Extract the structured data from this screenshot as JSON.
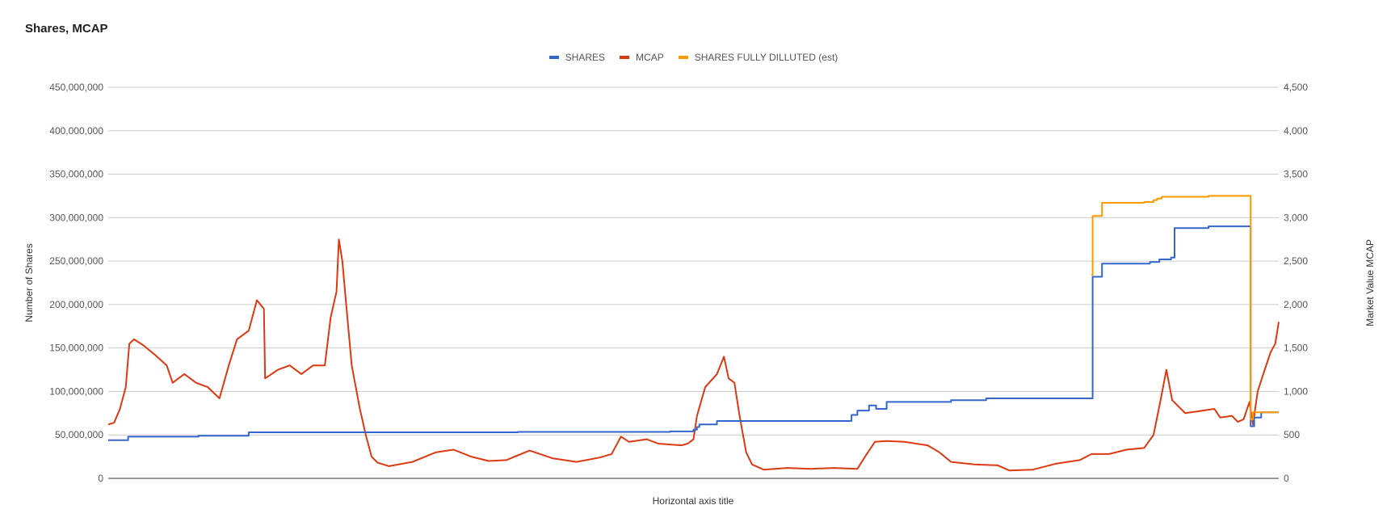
{
  "chart_data": {
    "type": "line",
    "title": "Shares, MCAP",
    "xlabel": "Horizontal axis title",
    "ylabel": "Number of Shares",
    "y2label": "Market Value MCAP",
    "ylim": [
      0,
      450000000
    ],
    "y2lim": [
      0,
      4500
    ],
    "y_ticks": [
      "0",
      "50,000,000",
      "100,000,000",
      "150,000,000",
      "200,000,000",
      "250,000,000",
      "300,000,000",
      "350,000,000",
      "400,000,000",
      "450,000,000"
    ],
    "y2_ticks": [
      "0",
      "500",
      "1,000",
      "1,500",
      "2,000",
      "2,500",
      "3,000",
      "3,500",
      "4,000",
      "4,500"
    ],
    "grid": true,
    "legend_position": "top",
    "xlim": [
      0,
      100
    ],
    "series": [
      {
        "name": "SHARES",
        "axis": "left",
        "color": "#3366cc",
        "step": true,
        "points": [
          [
            0,
            44000000
          ],
          [
            1.7,
            48000000
          ],
          [
            7.7,
            49000000
          ],
          [
            12.0,
            53000000
          ],
          [
            35.0,
            53500000
          ],
          [
            48.0,
            54000000
          ],
          [
            50.0,
            56000000
          ],
          [
            50.3,
            59000000
          ],
          [
            50.5,
            62000000
          ],
          [
            52.0,
            66000000
          ],
          [
            62.8,
            66000000
          ],
          [
            63.5,
            73000000
          ],
          [
            64.0,
            78000000
          ],
          [
            65.0,
            84000000
          ],
          [
            65.6,
            80000000
          ],
          [
            66.5,
            88000000
          ],
          [
            72.0,
            90000000
          ],
          [
            75.0,
            92000000
          ],
          [
            84.0,
            92000000
          ],
          [
            84.1,
            232000000
          ],
          [
            84.9,
            247000000
          ],
          [
            89.0,
            249000000
          ],
          [
            89.8,
            252000000
          ],
          [
            90.8,
            254000000
          ],
          [
            91.1,
            288000000
          ],
          [
            94.0,
            290000000
          ],
          [
            97.5,
            290000000
          ],
          [
            97.6,
            60000000
          ],
          [
            97.9,
            70000000
          ],
          [
            98.5,
            76000000
          ],
          [
            100.0,
            76000000
          ]
        ]
      },
      {
        "name": "MCAP",
        "axis": "right",
        "color": "#dc3912",
        "step": false,
        "points": [
          [
            0,
            620
          ],
          [
            0.5,
            640
          ],
          [
            1.0,
            800
          ],
          [
            1.5,
            1050
          ],
          [
            1.8,
            1550
          ],
          [
            2.2,
            1600
          ],
          [
            3.0,
            1530
          ],
          [
            4.0,
            1420
          ],
          [
            5.0,
            1300
          ],
          [
            5.5,
            1100
          ],
          [
            6.5,
            1200
          ],
          [
            7.5,
            1100
          ],
          [
            8.5,
            1050
          ],
          [
            9.5,
            920
          ],
          [
            10.3,
            1300
          ],
          [
            11.0,
            1600
          ],
          [
            12.0,
            1700
          ],
          [
            12.7,
            2050
          ],
          [
            13.3,
            1950
          ],
          [
            13.4,
            1150
          ],
          [
            14.5,
            1250
          ],
          [
            15.5,
            1300
          ],
          [
            16.5,
            1200
          ],
          [
            17.5,
            1300
          ],
          [
            18.5,
            1300
          ],
          [
            19.0,
            1850
          ],
          [
            19.5,
            2150
          ],
          [
            19.7,
            2750
          ],
          [
            20.0,
            2500
          ],
          [
            20.3,
            2050
          ],
          [
            20.8,
            1300
          ],
          [
            21.5,
            800
          ],
          [
            22.0,
            500
          ],
          [
            22.5,
            250
          ],
          [
            23.0,
            180
          ],
          [
            24.0,
            140
          ],
          [
            26.0,
            190
          ],
          [
            28.0,
            300
          ],
          [
            29.5,
            330
          ],
          [
            31.0,
            250
          ],
          [
            32.5,
            200
          ],
          [
            34.0,
            210
          ],
          [
            36.0,
            320
          ],
          [
            38.0,
            230
          ],
          [
            40.0,
            190
          ],
          [
            42.0,
            240
          ],
          [
            43.0,
            280
          ],
          [
            43.8,
            480
          ],
          [
            44.5,
            420
          ],
          [
            46.0,
            450
          ],
          [
            47.0,
            400
          ],
          [
            48.0,
            390
          ],
          [
            49.0,
            380
          ],
          [
            49.5,
            400
          ],
          [
            50.0,
            450
          ],
          [
            50.3,
            720
          ],
          [
            51.0,
            1050
          ],
          [
            52.0,
            1200
          ],
          [
            52.6,
            1400
          ],
          [
            53.0,
            1150
          ],
          [
            53.5,
            1100
          ],
          [
            53.9,
            750
          ],
          [
            54.2,
            520
          ],
          [
            54.5,
            300
          ],
          [
            55.0,
            160
          ],
          [
            56.0,
            100
          ],
          [
            58.0,
            120
          ],
          [
            60.0,
            110
          ],
          [
            62.0,
            120
          ],
          [
            64.0,
            110
          ],
          [
            64.8,
            280
          ],
          [
            65.5,
            420
          ],
          [
            66.5,
            430
          ],
          [
            68.0,
            420
          ],
          [
            70.0,
            380
          ],
          [
            71.0,
            300
          ],
          [
            72.0,
            190
          ],
          [
            74.0,
            160
          ],
          [
            76.0,
            150
          ],
          [
            77.0,
            90
          ],
          [
            79.0,
            100
          ],
          [
            81.0,
            170
          ],
          [
            83.0,
            210
          ],
          [
            84.0,
            280
          ],
          [
            85.5,
            280
          ],
          [
            87.0,
            330
          ],
          [
            88.5,
            350
          ],
          [
            89.3,
            500
          ],
          [
            89.9,
            900
          ],
          [
            90.4,
            1250
          ],
          [
            90.9,
            900
          ],
          [
            92.0,
            750
          ],
          [
            93.0,
            770
          ],
          [
            94.5,
            800
          ],
          [
            95.0,
            700
          ],
          [
            96.0,
            720
          ],
          [
            96.5,
            650
          ],
          [
            97.0,
            680
          ],
          [
            97.5,
            880
          ],
          [
            97.8,
            620
          ],
          [
            98.2,
            1000
          ],
          [
            98.8,
            1250
          ],
          [
            99.3,
            1450
          ],
          [
            99.7,
            1550
          ],
          [
            100.0,
            1800
          ]
        ]
      },
      {
        "name": "SHARES FULLY DILLUTED (est)",
        "axis": "left",
        "color": "#ff9900",
        "step": true,
        "points": [
          [
            84.0,
            234000000
          ],
          [
            84.1,
            302000000
          ],
          [
            84.9,
            317000000
          ],
          [
            88.5,
            318000000
          ],
          [
            89.3,
            320000000
          ],
          [
            89.6,
            322000000
          ],
          [
            90.0,
            324000000
          ],
          [
            94.0,
            325000000
          ],
          [
            97.5,
            325000000
          ],
          [
            97.6,
            68000000
          ],
          [
            97.8,
            76000000
          ],
          [
            100.0,
            76000000
          ]
        ]
      }
    ]
  }
}
